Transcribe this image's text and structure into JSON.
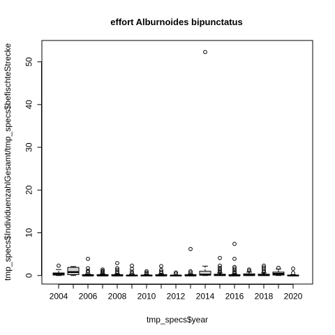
{
  "chart_data": {
    "type": "boxplot",
    "title": "effort Alburnoides bipunctatus",
    "xlabel": "tmp_specs$year",
    "ylabel": "tmp_specs$IndividuenzahlGesamt/tmp_specs$befischteStrecke",
    "ylim": [
      -2,
      55
    ],
    "y_ticks": [
      0,
      10,
      20,
      30,
      40,
      50
    ],
    "x_tick_labels": [
      "2004",
      "2006",
      "2008",
      "2010",
      "2012",
      "2014",
      "2016",
      "2018",
      "2020"
    ],
    "grid": false,
    "legend": "none",
    "categories": [
      "2004",
      "2005",
      "2006",
      "2007",
      "2008",
      "2009",
      "2010",
      "2011",
      "2012",
      "2013",
      "2014",
      "2015",
      "2016",
      "2017",
      "2018",
      "2019",
      "2020"
    ],
    "boxes": [
      {
        "year": "2004",
        "q1": 0.1,
        "median": 0.4,
        "q3": 0.6,
        "whisker_low": 0,
        "whisker_high": 1.4,
        "outliers": [
          2.3
        ]
      },
      {
        "year": "2005",
        "q1": 0.2,
        "median": 0.8,
        "q3": 1.9,
        "whisker_low": 0,
        "whisker_high": 2.1,
        "outliers": []
      },
      {
        "year": "2006",
        "q1": 0,
        "median": 0,
        "q3": 0.2,
        "whisker_low": 0,
        "whisker_high": 0.4,
        "outliers": [
          0.8,
          1.1,
          1.7,
          3.9
        ]
      },
      {
        "year": "2007",
        "q1": 0,
        "median": 0,
        "q3": 0.2,
        "whisker_low": 0,
        "whisker_high": 0.4,
        "outliers": [
          0.6,
          0.9,
          1.1,
          1.4
        ]
      },
      {
        "year": "2008",
        "q1": 0,
        "median": 0,
        "q3": 0.2,
        "whisker_low": 0,
        "whisker_high": 0.4,
        "outliers": [
          0.6,
          0.9,
          1.3,
          1.7,
          2.9
        ]
      },
      {
        "year": "2009",
        "q1": 0,
        "median": 0,
        "q3": 0.1,
        "whisker_low": 0,
        "whisker_high": 0.3,
        "outliers": [
          0.5,
          0.9,
          1.5,
          2.3
        ]
      },
      {
        "year": "2010",
        "q1": 0,
        "median": 0,
        "q3": 0.1,
        "whisker_low": 0,
        "whisker_high": 0.2,
        "outliers": [
          0.4,
          0.7,
          1.0
        ]
      },
      {
        "year": "2011",
        "q1": 0,
        "median": 0,
        "q3": 0.2,
        "whisker_low": 0,
        "whisker_high": 0.4,
        "outliers": [
          0.6,
          0.9,
          1.3,
          2.2
        ]
      },
      {
        "year": "2012",
        "q1": 0,
        "median": 0,
        "q3": 0.05,
        "whisker_low": 0,
        "whisker_high": 0.1,
        "outliers": [
          0.4,
          0.7
        ]
      },
      {
        "year": "2013",
        "q1": 0,
        "median": 0,
        "q3": 0.2,
        "whisker_low": 0,
        "whisker_high": 0.4,
        "outliers": [
          0.7,
          1.0,
          6.2
        ]
      },
      {
        "year": "2014",
        "q1": 0.1,
        "median": 0.2,
        "q3": 1.0,
        "whisker_low": 0,
        "whisker_high": 2.2,
        "outliers": [
          52.3
        ]
      },
      {
        "year": "2015",
        "q1": 0,
        "median": 0.1,
        "q3": 0.3,
        "whisker_low": 0,
        "whisker_high": 0.6,
        "outliers": [
          0.8,
          1.1,
          1.4,
          1.8,
          2.3,
          4.1
        ]
      },
      {
        "year": "2016",
        "q1": 0,
        "median": 0,
        "q3": 0.2,
        "whisker_low": 0,
        "whisker_high": 0.4,
        "outliers": [
          0.6,
          0.9,
          1.2,
          1.6,
          2.0,
          3.9,
          7.4
        ]
      },
      {
        "year": "2017",
        "q1": 0,
        "median": 0.1,
        "q3": 0.4,
        "whisker_low": 0,
        "whisker_high": 0.8,
        "outliers": [
          1.1,
          1.4
        ]
      },
      {
        "year": "2018",
        "q1": 0,
        "median": 0.1,
        "q3": 0.3,
        "whisker_low": 0,
        "whisker_high": 0.6,
        "outliers": [
          0.8,
          1.1,
          1.5,
          1.9,
          2.3
        ]
      },
      {
        "year": "2019",
        "q1": 0.1,
        "median": 0.4,
        "q3": 0.8,
        "whisker_low": 0,
        "whisker_high": 1.5,
        "outliers": [
          1.8
        ]
      },
      {
        "year": "2020",
        "q1": 0,
        "median": 0,
        "q3": 0.1,
        "whisker_low": 0,
        "whisker_high": 0.2,
        "outliers": [
          0.6,
          1.6
        ]
      }
    ]
  }
}
